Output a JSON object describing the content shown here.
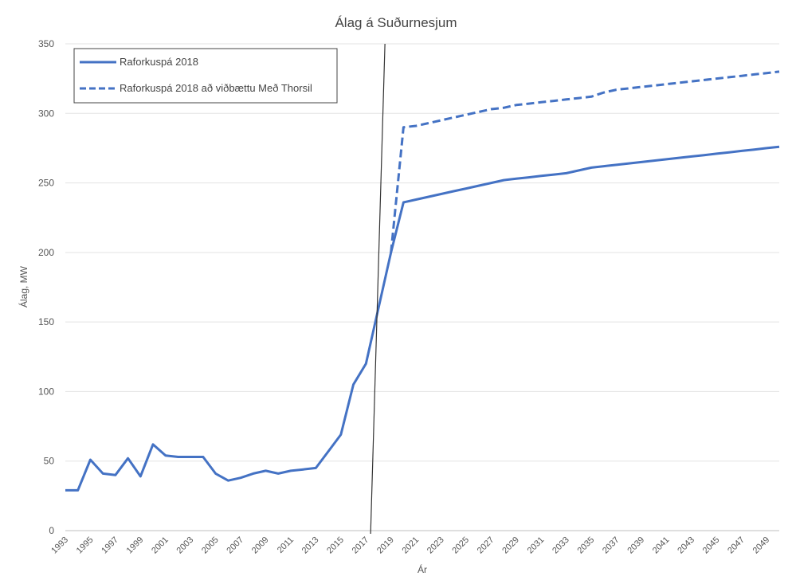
{
  "chart_data": {
    "type": "line",
    "title": "Álag á Suðurnesjum",
    "xlabel": "Ár",
    "ylabel": "Álag, MW",
    "ylim": [
      0,
      350
    ],
    "yticks": [
      0,
      50,
      100,
      150,
      200,
      250,
      300,
      350
    ],
    "xlim": [
      1993,
      2050
    ],
    "xtick_labels": [
      "1993",
      "1995",
      "1997",
      "1999",
      "2001",
      "2003",
      "2005",
      "2007",
      "2009",
      "2011",
      "2013",
      "2015",
      "2017",
      "2019",
      "2021",
      "2023",
      "2025",
      "2027",
      "2029",
      "2031",
      "2033",
      "2035",
      "2037",
      "2039",
      "2041",
      "2043",
      "2045",
      "2047",
      "2049"
    ],
    "grid": "horizontal",
    "legend_position": "top-left",
    "vertical_line_x": 2017.5,
    "vertical_line_color": "#333333",
    "series": [
      {
        "name": "Raforkuspá 2018",
        "style": "solid",
        "color": "#4472C4",
        "x": [
          1993,
          1994,
          1995,
          1996,
          1997,
          1998,
          1999,
          2000,
          2001,
          2002,
          2003,
          2004,
          2005,
          2006,
          2007,
          2008,
          2009,
          2010,
          2011,
          2012,
          2013,
          2014,
          2015,
          2016,
          2017,
          2018,
          2019,
          2020,
          2021,
          2022,
          2023,
          2024,
          2025,
          2026,
          2027,
          2028,
          2029,
          2030,
          2031,
          2032,
          2033,
          2034,
          2035,
          2036,
          2037,
          2038,
          2039,
          2040,
          2041,
          2042,
          2043,
          2044,
          2045,
          2046,
          2047,
          2048,
          2049,
          2050
        ],
        "y": [
          29,
          29,
          51,
          41,
          40,
          52,
          39,
          62,
          54,
          53,
          53,
          53,
          41,
          36,
          38,
          41,
          43,
          41,
          43,
          44,
          45,
          57,
          69,
          105,
          120,
          160,
          200,
          236,
          238,
          240,
          242,
          244,
          246,
          248,
          250,
          252,
          253,
          254,
          255,
          256,
          257,
          259,
          261,
          262,
          263,
          264,
          265,
          266,
          267,
          268,
          269,
          270,
          271,
          272,
          273,
          274,
          275,
          276
        ]
      },
      {
        "name": "Raforkuspá 2018 að viðbættu Með Thorsil",
        "style": "dashed",
        "color": "#4472C4",
        "x": [
          2019,
          2020,
          2021,
          2022,
          2023,
          2024,
          2025,
          2026,
          2027,
          2028,
          2029,
          2030,
          2031,
          2032,
          2033,
          2034,
          2035,
          2036,
          2037,
          2038,
          2039,
          2040,
          2041,
          2042,
          2043,
          2044,
          2045,
          2046,
          2047,
          2048,
          2049,
          2050
        ],
        "y": [
          200,
          290,
          291,
          293,
          295,
          297,
          299,
          301,
          303,
          304,
          306,
          307,
          308,
          309,
          310,
          311,
          312,
          315,
          317,
          318,
          319,
          320,
          321,
          322,
          323,
          324,
          325,
          326,
          327,
          328,
          329,
          330
        ]
      }
    ]
  }
}
